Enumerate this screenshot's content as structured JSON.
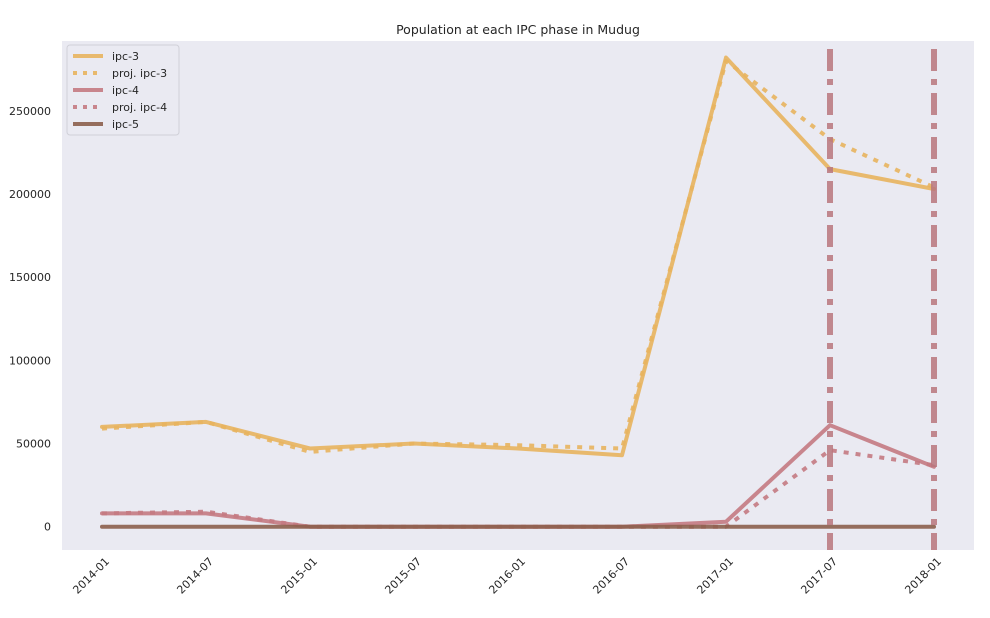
{
  "chart_data": {
    "type": "line",
    "title": "Population at each IPC phase in Mudug",
    "xlabel": "",
    "ylabel": "",
    "x_ticks": [
      "2014-01",
      "2014-07",
      "2015-01",
      "2015-07",
      "2016-01",
      "2016-07",
      "2017-01",
      "2017-07",
      "2018-01"
    ],
    "y_ticks": [
      0,
      50000,
      100000,
      150000,
      200000,
      250000
    ],
    "ylim": [
      -14000,
      292000
    ],
    "grid": false,
    "legend_position": "top-left",
    "colors": {
      "ipc3": "#e8b45e",
      "ipc4": "#c47a82",
      "ipc5": "#8c5f4d",
      "vline": "#b9767c",
      "plot_bg": "#eaeaf2"
    },
    "series": [
      {
        "name": "ipc-3",
        "style": "solid",
        "points": [
          {
            "x": "2014-01",
            "y": 60000
          },
          {
            "x": "2014-07",
            "y": 63000
          },
          {
            "x": "2015-01",
            "y": 47000
          },
          {
            "x": "2015-07",
            "y": 50000
          },
          {
            "x": "2016-01",
            "y": 47000
          },
          {
            "x": "2016-07",
            "y": 43000
          },
          {
            "x": "2017-01",
            "y": 282000
          },
          {
            "x": "2017-07",
            "y": 215000
          },
          {
            "x": "2018-01",
            "y": 203000
          }
        ]
      },
      {
        "name": "proj. ipc-3",
        "style": "dotted",
        "points": [
          {
            "x": "2014-01",
            "y": 59000
          },
          {
            "x": "2014-07",
            "y": 63000
          },
          {
            "x": "2015-01",
            "y": 45000
          },
          {
            "x": "2015-07",
            "y": 50000
          },
          {
            "x": "2016-01",
            "y": 49000
          },
          {
            "x": "2016-07",
            "y": 47000
          },
          {
            "x": "2017-01",
            "y": 280000
          },
          {
            "x": "2017-07",
            "y": 233000
          },
          {
            "x": "2018-01",
            "y": 204000
          }
        ]
      },
      {
        "name": "ipc-4",
        "style": "solid",
        "points": [
          {
            "x": "2014-01",
            "y": 8000
          },
          {
            "x": "2014-07",
            "y": 8000
          },
          {
            "x": "2015-01",
            "y": 0
          },
          {
            "x": "2015-07",
            "y": 0
          },
          {
            "x": "2016-01",
            "y": 0
          },
          {
            "x": "2016-07",
            "y": 0
          },
          {
            "x": "2017-01",
            "y": 3000
          },
          {
            "x": "2017-07",
            "y": 61000
          },
          {
            "x": "2018-01",
            "y": 36000
          }
        ]
      },
      {
        "name": "proj. ipc-4",
        "style": "dotted",
        "points": [
          {
            "x": "2014-01",
            "y": 8000
          },
          {
            "x": "2014-07",
            "y": 9000
          },
          {
            "x": "2015-01",
            "y": 0
          },
          {
            "x": "2015-07",
            "y": 0
          },
          {
            "x": "2016-01",
            "y": 0
          },
          {
            "x": "2016-07",
            "y": 0
          },
          {
            "x": "2017-01",
            "y": 0
          },
          {
            "x": "2017-07",
            "y": 46000
          },
          {
            "x": "2018-01",
            "y": 37000
          }
        ]
      },
      {
        "name": "ipc-5",
        "style": "solid",
        "points": [
          {
            "x": "2014-01",
            "y": 0
          },
          {
            "x": "2014-07",
            "y": 0
          },
          {
            "x": "2015-01",
            "y": 0
          },
          {
            "x": "2015-07",
            "y": 0
          },
          {
            "x": "2016-01",
            "y": 0
          },
          {
            "x": "2016-07",
            "y": 0
          },
          {
            "x": "2017-01",
            "y": 0
          },
          {
            "x": "2017-07",
            "y": 0
          },
          {
            "x": "2018-01",
            "y": 0
          }
        ]
      }
    ],
    "vertical_markers": [
      "2017-07",
      "2018-01"
    ]
  }
}
